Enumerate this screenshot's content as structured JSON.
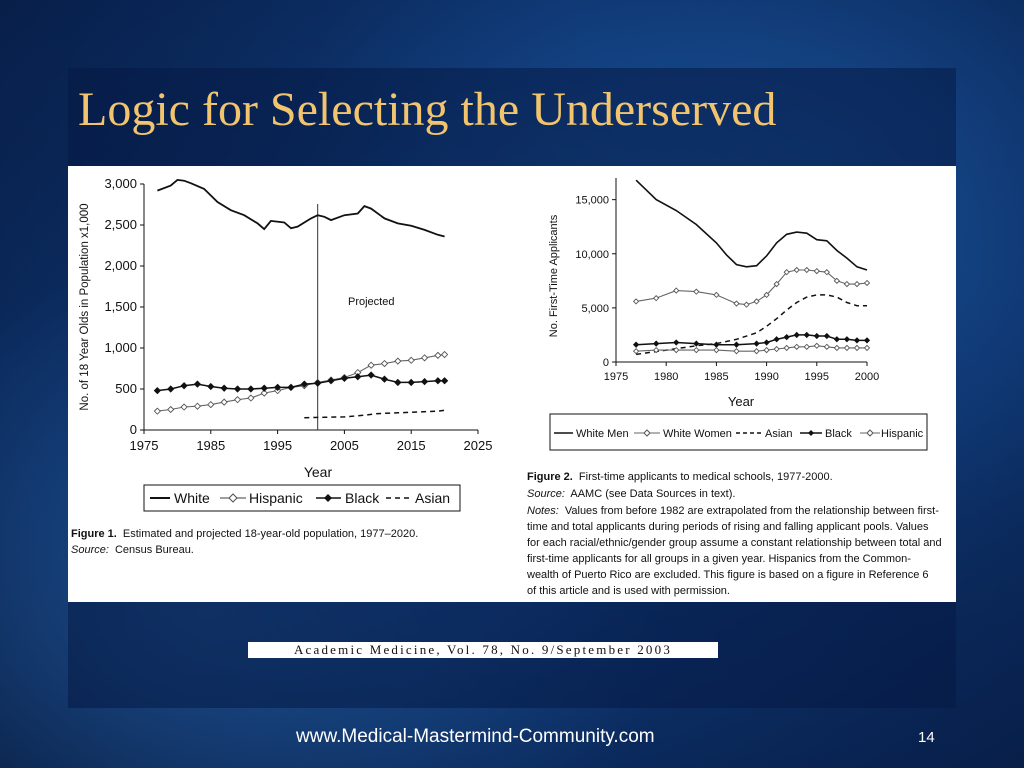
{
  "slide": {
    "title": "Logic for Selecting the Underserved",
    "citation": "Academic Medicine, Vol. 78, No. 9/September 2003",
    "footer_url": "www.Medical-Mastermind-Community.com",
    "page_number": "14",
    "colors": {
      "title": "#f2c46e",
      "background": "#0f3a78",
      "text": "#ffffff"
    }
  },
  "chart_data": [
    {
      "type": "line",
      "id": "figure1",
      "title": "",
      "xlabel": "Year",
      "ylabel": "No. of 18 Year Olds in Population x1,000",
      "xlim": [
        1975,
        2025
      ],
      "ylim": [
        0,
        3000
      ],
      "xticks": [
        "1975",
        "1985",
        "1995",
        "2005",
        "2015",
        "2025"
      ],
      "yticks": [
        "0",
        "500",
        "1,000",
        "1,500",
        "2,000",
        "2,500",
        "3,000"
      ],
      "annotation": "Projected",
      "projection_year": 2001,
      "legend": {
        "placement": "bottom",
        "labels": [
          "White",
          "Hispanic",
          "Black",
          "Asian"
        ]
      },
      "caption": {
        "label": "Figure 1.",
        "text": "Estimated and projected 18-year-old population, 1977–2020.",
        "source_label": "Source:",
        "source_text": "Census Bureau."
      },
      "series": [
        {
          "name": "White",
          "style": "solid",
          "x": [
            1977,
            1979,
            1980,
            1981,
            1982,
            1984,
            1986,
            1988,
            1990,
            1992,
            1993,
            1994,
            1996,
            1997,
            1998,
            2000,
            2001,
            2002,
            2003,
            2005,
            2007,
            2008,
            2009,
            2011,
            2013,
            2015,
            2017,
            2019,
            2020
          ],
          "y": [
            2920,
            2980,
            3050,
            3040,
            3010,
            2940,
            2780,
            2680,
            2620,
            2520,
            2450,
            2550,
            2530,
            2460,
            2480,
            2580,
            2620,
            2600,
            2560,
            2620,
            2640,
            2730,
            2700,
            2580,
            2520,
            2490,
            2440,
            2380,
            2360
          ]
        },
        {
          "name": "Hispanic",
          "style": "open-marker",
          "x": [
            1977,
            1979,
            1981,
            1983,
            1985,
            1987,
            1989,
            1991,
            1993,
            1995,
            1997,
            1999,
            2001,
            2003,
            2005,
            2007,
            2009,
            2011,
            2013,
            2015,
            2017,
            2019,
            2020
          ],
          "y": [
            230,
            250,
            280,
            290,
            310,
            340,
            370,
            390,
            450,
            480,
            520,
            540,
            580,
            610,
            640,
            700,
            790,
            810,
            840,
            850,
            880,
            910,
            920
          ]
        },
        {
          "name": "Black",
          "style": "filled-marker",
          "x": [
            1977,
            1979,
            1981,
            1983,
            1985,
            1987,
            1989,
            1991,
            1993,
            1995,
            1997,
            1999,
            2001,
            2003,
            2005,
            2007,
            2009,
            2011,
            2013,
            2015,
            2017,
            2019,
            2020
          ],
          "y": [
            480,
            500,
            540,
            560,
            530,
            510,
            500,
            500,
            510,
            520,
            520,
            560,
            570,
            600,
            630,
            650,
            670,
            620,
            580,
            580,
            590,
            600,
            600
          ]
        },
        {
          "name": "Asian",
          "style": "dashed",
          "x": [
            1999,
            2002,
            2005,
            2008,
            2010,
            2013,
            2016,
            2019,
            2020
          ],
          "y": [
            150,
            155,
            160,
            180,
            200,
            210,
            220,
            230,
            240
          ]
        }
      ]
    },
    {
      "type": "line",
      "id": "figure2",
      "title": "",
      "xlabel": "Year",
      "ylabel": "No. First-Time Applicants",
      "xlim": [
        1975,
        2000
      ],
      "ylim": [
        0,
        17000
      ],
      "xticks": [
        "1975",
        "1980",
        "1985",
        "1990",
        "1995",
        "2000"
      ],
      "yticks": [
        "0",
        "5,000",
        "10,000",
        "15,000"
      ],
      "legend": {
        "placement": "bottom",
        "labels": [
          "White Men",
          "White Women",
          "Asian",
          "Black",
          "Hispanic"
        ]
      },
      "caption": {
        "label": "Figure 2.",
        "text": "First-time applicants to medical schools, 1977-2000.",
        "source_label": "Source:",
        "source_text": "AAMC (see Data Sources in text).",
        "notes_label": "Notes:",
        "notes_lines": [
          "Values from before 1982 are extrapolated from the relationship between first-",
          "time and total applicants during periods of rising and falling applicant pools. Values",
          "for each racial/ethnic/gender group assume a constant relationship between total and",
          "first-time applicants for all groups in a given year. Hispanics from the Common-",
          "wealth of Puerto Rico are excluded. This figure is based on a figure in Reference 6",
          "of this article and is used with permission."
        ]
      },
      "series": [
        {
          "name": "White Men",
          "style": "solid",
          "x": [
            1977,
            1979,
            1981,
            1983,
            1985,
            1986,
            1987,
            1988,
            1989,
            1990,
            1991,
            1992,
            1993,
            1994,
            1995,
            1996,
            1997,
            1998,
            1999,
            2000
          ],
          "y": [
            16800,
            15000,
            14000,
            12700,
            11000,
            9900,
            9000,
            8800,
            8900,
            9800,
            11000,
            11800,
            12000,
            11900,
            11300,
            11200,
            10300,
            9600,
            8800,
            8500
          ]
        },
        {
          "name": "White Women",
          "style": "open-marker",
          "x": [
            1977,
            1979,
            1981,
            1983,
            1985,
            1987,
            1988,
            1989,
            1990,
            1991,
            1992,
            1993,
            1994,
            1995,
            1996,
            1997,
            1998,
            1999,
            2000
          ],
          "y": [
            5600,
            5900,
            6600,
            6500,
            6200,
            5400,
            5300,
            5600,
            6200,
            7200,
            8300,
            8500,
            8500,
            8400,
            8300,
            7500,
            7200,
            7200,
            7300
          ]
        },
        {
          "name": "Asian",
          "style": "dashed",
          "x": [
            1977,
            1980,
            1983,
            1985,
            1987,
            1989,
            1990,
            1991,
            1992,
            1993,
            1994,
            1995,
            1996,
            1997,
            1998,
            1999,
            2000
          ],
          "y": [
            700,
            1100,
            1500,
            1700,
            2100,
            2700,
            3300,
            4000,
            4800,
            5500,
            6000,
            6200,
            6200,
            6000,
            5500,
            5200,
            5200
          ]
        },
        {
          "name": "Black",
          "style": "filled-marker",
          "x": [
            1977,
            1979,
            1981,
            1983,
            1985,
            1987,
            1989,
            1990,
            1991,
            1992,
            1993,
            1994,
            1995,
            1996,
            1997,
            1998,
            1999,
            2000
          ],
          "y": [
            1600,
            1700,
            1800,
            1700,
            1600,
            1600,
            1700,
            1800,
            2100,
            2300,
            2500,
            2500,
            2400,
            2400,
            2100,
            2100,
            2000,
            2000
          ]
        },
        {
          "name": "Hispanic",
          "style": "open-marker",
          "x": [
            1977,
            1979,
            1981,
            1983,
            1985,
            1987,
            1989,
            1990,
            1991,
            1992,
            1993,
            1994,
            1995,
            1996,
            1997,
            1998,
            1999,
            2000
          ],
          "y": [
            1000,
            1100,
            1100,
            1100,
            1100,
            1000,
            1000,
            1100,
            1200,
            1300,
            1400,
            1400,
            1500,
            1400,
            1300,
            1300,
            1300,
            1300
          ]
        }
      ]
    }
  ]
}
